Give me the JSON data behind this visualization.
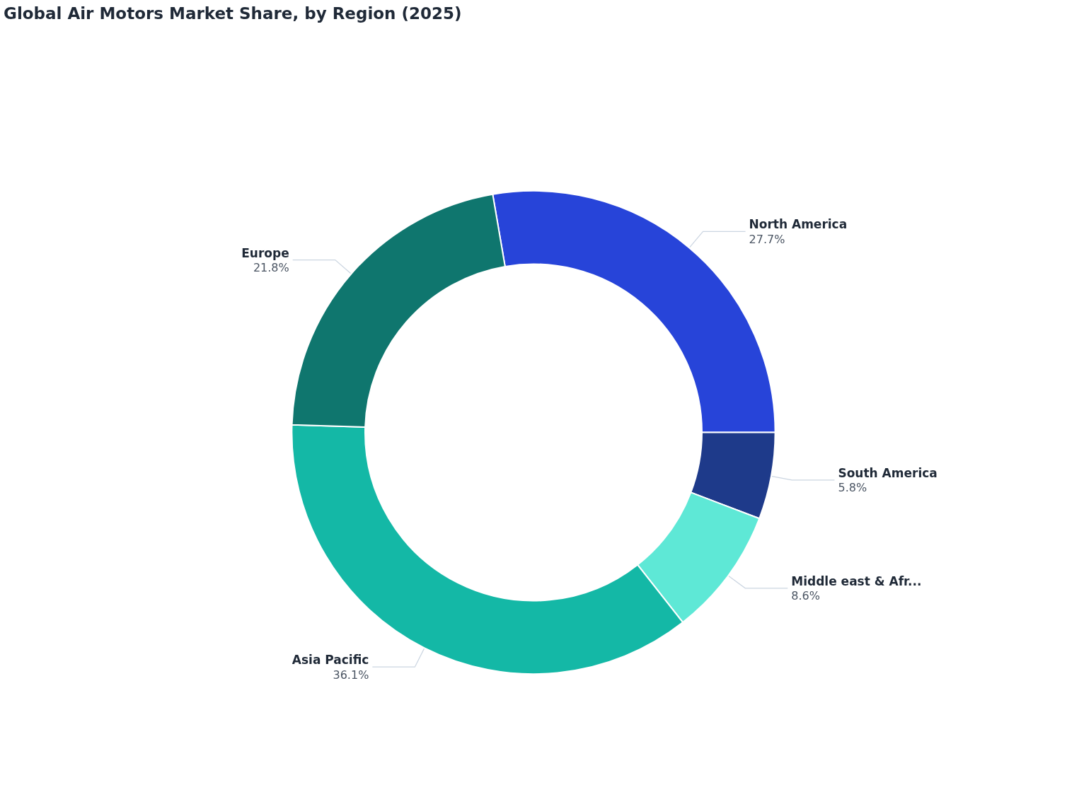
{
  "chart_data": {
    "type": "donut",
    "title": "Global Air Motors Market Share, by Region (2025)",
    "categories": [
      "North America",
      "South America",
      "Middle east & Afr...",
      "Asia Pacific",
      "Europe"
    ],
    "values": [
      27.7,
      5.8,
      8.6,
      36.1,
      21.8
    ],
    "value_labels": [
      "27.7%",
      "5.8%",
      "8.6%",
      "36.1%",
      "21.8%"
    ],
    "colors": [
      "#2744d9",
      "#1e3a8a",
      "#5ee8d6",
      "#14b8a6",
      "#0f766e"
    ]
  }
}
